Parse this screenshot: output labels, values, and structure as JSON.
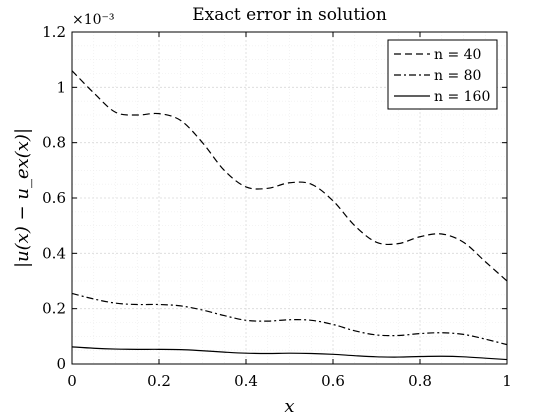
{
  "chart_data": {
    "type": "line",
    "title": "Exact error in solution",
    "xlabel": "x",
    "ylabel": "|u(x) − u_ex(x)|",
    "y_exponent_label": "×10⁻³",
    "xlim": [
      0,
      1
    ],
    "ylim": [
      0,
      1.2
    ],
    "x_ticks": [
      0,
      0.2,
      0.4,
      0.6,
      0.8,
      1
    ],
    "x_tick_labels": [
      "0",
      "0.2",
      "0.4",
      "0.6",
      "0.8",
      "1"
    ],
    "y_ticks": [
      0,
      0.2,
      0.4,
      0.6,
      0.8,
      1,
      1.2
    ],
    "y_tick_labels": [
      "0",
      "0.2",
      "0.4",
      "0.6",
      "0.8",
      "1",
      "1.2"
    ],
    "grid": true,
    "legend_position": "top-right",
    "x": [
      0,
      0.05,
      0.1,
      0.15,
      0.2,
      0.25,
      0.3,
      0.35,
      0.4,
      0.45,
      0.5,
      0.55,
      0.6,
      0.65,
      0.7,
      0.75,
      0.8,
      0.85,
      0.9,
      0.95,
      1
    ],
    "series": [
      {
        "name": "n = 40",
        "style": "dashed",
        "values": [
          1.06,
          0.98,
          0.91,
          0.9,
          0.905,
          0.88,
          0.8,
          0.7,
          0.64,
          0.635,
          0.655,
          0.65,
          0.59,
          0.5,
          0.44,
          0.435,
          0.46,
          0.47,
          0.44,
          0.37,
          0.3
        ]
      },
      {
        "name": "n = 80",
        "style": "dashdot",
        "values": [
          0.255,
          0.235,
          0.22,
          0.215,
          0.215,
          0.21,
          0.195,
          0.175,
          0.158,
          0.155,
          0.16,
          0.158,
          0.143,
          0.12,
          0.105,
          0.103,
          0.11,
          0.113,
          0.107,
          0.09,
          0.07
        ]
      },
      {
        "name": "n = 160",
        "style": "solid",
        "values": [
          0.062,
          0.057,
          0.054,
          0.053,
          0.053,
          0.052,
          0.048,
          0.043,
          0.039,
          0.038,
          0.039,
          0.038,
          0.035,
          0.03,
          0.026,
          0.025,
          0.027,
          0.028,
          0.026,
          0.021,
          0.016
        ]
      }
    ]
  }
}
